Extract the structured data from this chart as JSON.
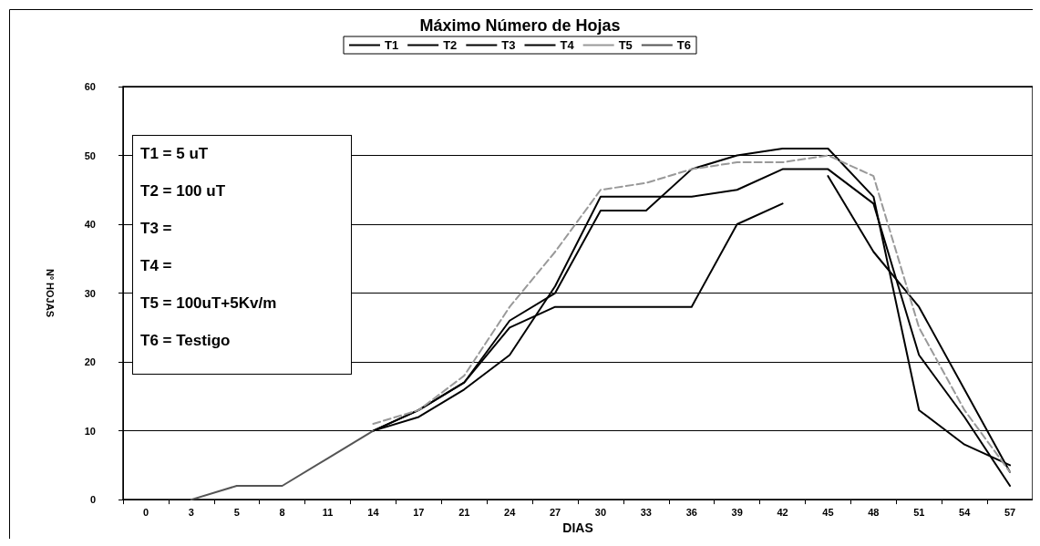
{
  "chart_data": {
    "type": "line",
    "title": "Máximo Número de Hojas",
    "xlabel": "DIAS",
    "ylabel": "Nº HOJAS",
    "categories": [
      "0",
      "3",
      "5",
      "8",
      "11",
      "14",
      "17",
      "21",
      "24",
      "27",
      "30",
      "33",
      "36",
      "39",
      "42",
      "45",
      "48",
      "51",
      "54",
      "57"
    ],
    "series": [
      {
        "name": "T1",
        "color": "#000000",
        "line_style": "solid",
        "values": [
          null,
          null,
          null,
          null,
          null,
          10,
          13,
          17,
          26,
          30,
          42,
          42,
          48,
          50,
          51,
          51,
          44,
          13,
          8,
          5
        ]
      },
      {
        "name": "T2",
        "color": "#000000",
        "line_style": "solid",
        "values": [
          null,
          null,
          null,
          null,
          null,
          10,
          12,
          16,
          21,
          31,
          44,
          44,
          44,
          45,
          48,
          48,
          43,
          21,
          12,
          2
        ]
      },
      {
        "name": "T3",
        "color": "#000000",
        "line_style": "solid",
        "values": [
          null,
          null,
          null,
          null,
          null,
          10,
          13,
          17,
          25,
          28,
          28,
          28,
          28,
          40,
          43,
          null,
          null,
          null,
          null,
          null
        ]
      },
      {
        "name": "T4",
        "color": "#000000",
        "line_style": "solid",
        "values": [
          null,
          null,
          null,
          null,
          null,
          null,
          null,
          null,
          null,
          null,
          null,
          null,
          null,
          null,
          null,
          47,
          36,
          28,
          16,
          4
        ]
      },
      {
        "name": "T5",
        "color": "#999999",
        "line_style": "dashed",
        "values": [
          null,
          null,
          null,
          null,
          null,
          11,
          13,
          18,
          28,
          36,
          45,
          46,
          48,
          49,
          49,
          50,
          47,
          25,
          13,
          4
        ]
      },
      {
        "name": "T6",
        "color": "#555555",
        "line_style": "solid",
        "values": [
          null,
          0,
          2,
          2,
          6,
          10,
          null,
          null,
          null,
          null,
          null,
          null,
          null,
          null,
          null,
          null,
          null,
          null,
          null,
          null
        ]
      }
    ],
    "ylim": [
      0,
      60
    ],
    "yticks": [
      0,
      10,
      20,
      30,
      40,
      50,
      60
    ],
    "grid": "y",
    "legend": "top",
    "marker": "none",
    "annotations": [
      "T1 = 5 uT",
      "T2 = 100 uT",
      "T3 =",
      "T4 =",
      "T5 = 100uT+5Kv/m",
      "T6 = Testigo"
    ]
  }
}
